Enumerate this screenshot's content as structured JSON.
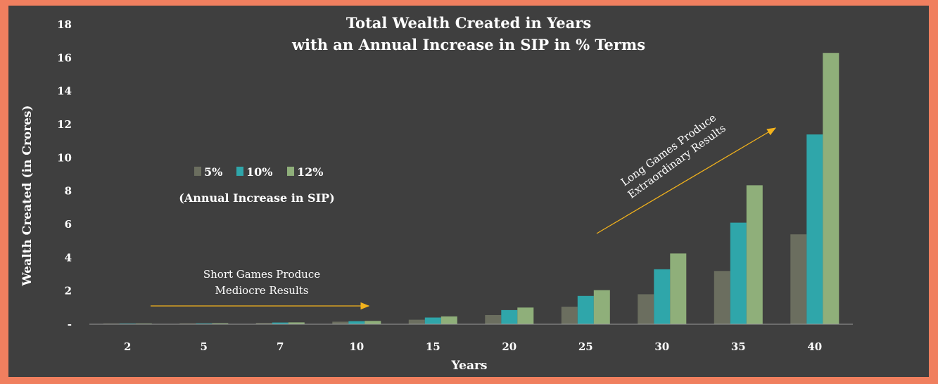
{
  "chart_data": {
    "type": "bar",
    "title": "Total Wealth Created in Years",
    "subtitle": "with an Annual Increase in SIP in % Terms",
    "xlabel": "Years",
    "ylabel": "Wealth Created (in Crores)",
    "categories": [
      "2",
      "5",
      "7",
      "10",
      "15",
      "20",
      "25",
      "30",
      "35",
      "40"
    ],
    "ylim": [
      0,
      18
    ],
    "yticks": [
      0,
      2,
      4,
      6,
      8,
      10,
      12,
      14,
      16,
      18
    ],
    "ytick_labels": [
      "-",
      "2",
      "4",
      "6",
      "8",
      "10",
      "12",
      "14",
      "16",
      "18"
    ],
    "grid": false,
    "legend_position": "center-left",
    "legend_caption": "(Annual Increase in SIP)",
    "series": [
      {
        "name": "5%",
        "color": "#6b6e5f",
        "values": [
          0.02,
          0.05,
          0.08,
          0.15,
          0.27,
          0.55,
          1.05,
          1.8,
          3.2,
          5.4
        ]
      },
      {
        "name": "10%",
        "color": "#2fa6aa",
        "values": [
          0.03,
          0.05,
          0.1,
          0.18,
          0.4,
          0.85,
          1.7,
          3.3,
          6.1,
          11.4
        ]
      },
      {
        "name": "12%",
        "color": "#8faf7a",
        "values": [
          0.03,
          0.06,
          0.11,
          0.2,
          0.47,
          1.0,
          2.05,
          4.25,
          8.35,
          16.3
        ]
      }
    ],
    "annotations": [
      {
        "lines": [
          "Short Games Produce",
          "Mediocre Results"
        ]
      },
      {
        "lines": [
          "Long Games Produce",
          "Extraordinary Results"
        ]
      }
    ]
  }
}
